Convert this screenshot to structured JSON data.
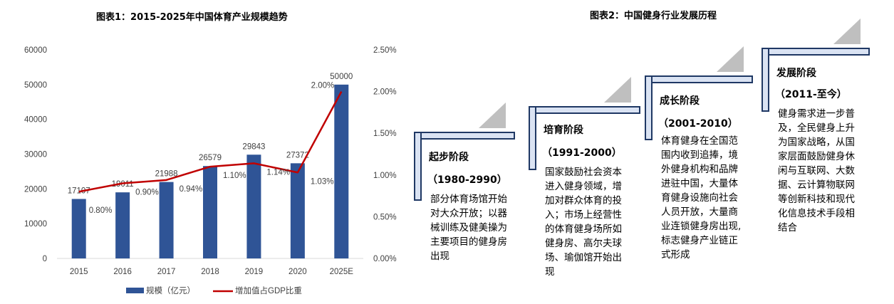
{
  "left_title": "图表1：2015-2025年中国体育产业规模趋势",
  "right_title": "图表2：中国健身行业发展历程",
  "chart_data": [
    {
      "type": "bar",
      "title": "图表1：2015-2025年中国体育产业规模趋势",
      "categories": [
        "2015",
        "2016",
        "2017",
        "2018",
        "2019",
        "2020",
        "2025E"
      ],
      "series": [
        {
          "name": "规模（亿元）",
          "type": "bar",
          "axis": "left",
          "values": [
            17107,
            19011,
            21988,
            26579,
            29843,
            27372,
            50000
          ],
          "labels": [
            "17107",
            "19011",
            "21988",
            "26579",
            "29843",
            "27372",
            "50000"
          ]
        },
        {
          "name": "增加值占GDP比重",
          "type": "line",
          "axis": "right",
          "values": [
            0.8,
            0.9,
            0.94,
            1.1,
            1.14,
            1.03,
            2.0
          ],
          "labels": [
            "0.80%",
            "0.90%",
            "0.94%",
            "1.10%",
            "1.14%",
            "1.03%",
            "2.00%"
          ]
        }
      ],
      "y_left": {
        "range": [
          0,
          60000
        ],
        "ticks": [
          "0",
          "10000",
          "20000",
          "30000",
          "40000",
          "50000",
          "60000"
        ]
      },
      "y_right": {
        "range": [
          0,
          2.5
        ],
        "unit": "%",
        "ticks": [
          "0.00%",
          "0.50%",
          "1.00%",
          "1.50%",
          "2.00%",
          "2.50%"
        ]
      },
      "grid": false,
      "legend": "bottom",
      "colors": {
        "bar": "#2F5496",
        "line": "#C00000"
      }
    },
    {
      "type": "diagram",
      "title": "图表2：中国健身行业发展历程",
      "stages": [
        {
          "title": "起步阶段",
          "period": "（1980-2990）",
          "description": [
            "部分体育场馆开始",
            "对大众开放；以器",
            "械训练及健美操为",
            "主要项目的健身房",
            "出现"
          ]
        },
        {
          "title": "培育阶段",
          "period": "（1991-2000）",
          "description": [
            "国家鼓励社会资本",
            "进入健身领域，增",
            "加对群众体育的投",
            "入；市场上经营性",
            "的体育健身场所如",
            "健身房、高尔夫球",
            "场、瑜伽馆开始出",
            "现"
          ]
        },
        {
          "title": "成长阶段",
          "period": "（2001-2010）",
          "description": [
            "体育健身在全国范",
            "围内收到追捧，境",
            "外健身机构和品牌",
            "进驻中国，大量体",
            "育健身设施向社会",
            "人员开放，大量商",
            "业连锁健身房出现,",
            "标志健身产业链正",
            "式形成"
          ]
        },
        {
          "title": "发展阶段",
          "period": "（2011-至今）",
          "description": [
            "健身需求进一步普",
            "及，全民健身上升",
            "为国家战略，从国",
            "家层面鼓励健身休",
            "闲与互联网、大数",
            "据、云计算物联网",
            "等创新科技和现代",
            "化信息技术手段相",
            "结合"
          ]
        }
      ],
      "colors": {
        "frame_border": "#1F3864",
        "frame_fill": "#DAE3F3",
        "triangle": "#BFBFBF"
      }
    }
  ]
}
